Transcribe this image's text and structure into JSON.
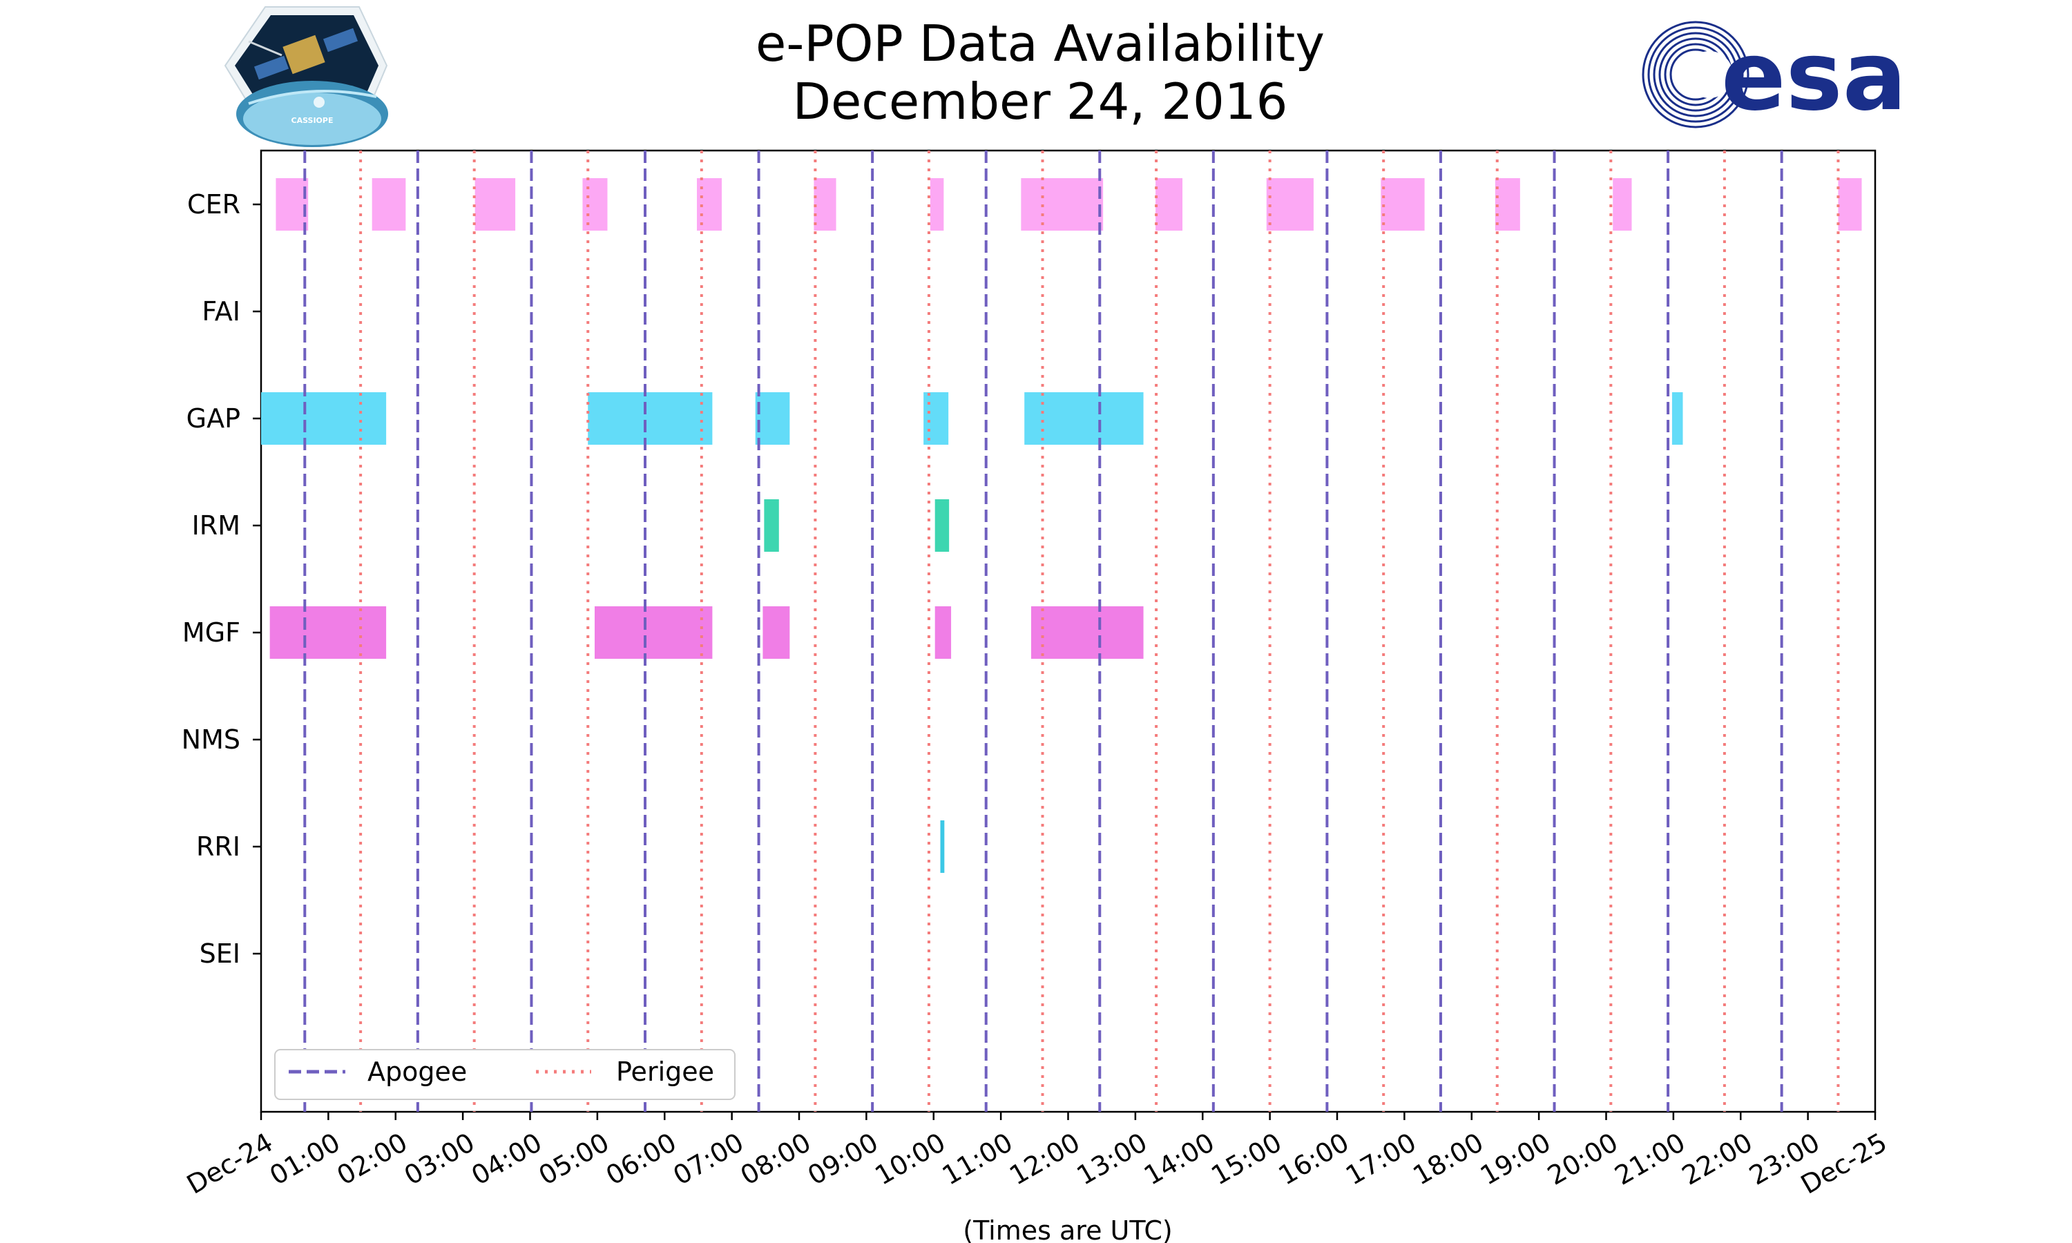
{
  "chart_data": {
    "type": "timeline",
    "title_line1": "e-POP Data Availability",
    "title_line2": "December 24, 2016",
    "xlabel": "(Times are UTC)",
    "x_unit": "hours since Dec-24 00:00",
    "xlim": [
      0,
      24
    ],
    "x_tick_labels": [
      "Dec-24",
      "01:00",
      "02:00",
      "03:00",
      "04:00",
      "05:00",
      "06:00",
      "07:00",
      "08:00",
      "09:00",
      "10:00",
      "11:00",
      "12:00",
      "13:00",
      "14:00",
      "15:00",
      "16:00",
      "17:00",
      "18:00",
      "19:00",
      "20:00",
      "21:00",
      "22:00",
      "23:00",
      "Dec-25"
    ],
    "instruments": [
      "CER",
      "FAI",
      "GAP",
      "IRM",
      "MGF",
      "NMS",
      "RRI",
      "SEI"
    ],
    "apogee_hours": [
      0.65,
      2.33,
      4.02,
      5.71,
      7.4,
      9.09,
      10.78,
      12.47,
      14.16,
      15.85,
      17.54,
      19.23,
      20.92,
      22.61
    ],
    "perigee_hours": [
      1.48,
      3.17,
      4.86,
      6.55,
      8.24,
      9.93,
      11.62,
      13.31,
      15.0,
      16.69,
      18.38,
      20.07,
      21.76,
      23.45
    ],
    "segments": [
      {
        "instrument": "CER",
        "color": "#fca8f4",
        "intervals": [
          [
            0.22,
            0.7
          ],
          [
            1.65,
            2.15
          ],
          [
            3.18,
            3.78
          ],
          [
            4.78,
            5.15
          ],
          [
            6.48,
            6.85
          ],
          [
            8.22,
            8.55
          ],
          [
            9.95,
            10.15
          ],
          [
            11.3,
            12.52
          ],
          [
            13.3,
            13.7
          ],
          [
            14.95,
            15.65
          ],
          [
            16.65,
            17.3
          ],
          [
            18.35,
            18.72
          ],
          [
            20.1,
            20.38
          ],
          [
            23.45,
            23.8
          ]
        ]
      },
      {
        "instrument": "GAP",
        "color": "#63dcf8",
        "intervals": [
          [
            0.0,
            1.86
          ],
          [
            4.86,
            6.71
          ],
          [
            7.35,
            7.86
          ],
          [
            9.85,
            10.22
          ],
          [
            11.35,
            13.12
          ],
          [
            20.98,
            21.14
          ]
        ]
      },
      {
        "instrument": "IRM",
        "color": "#3dd6b0",
        "intervals": [
          [
            7.48,
            7.7
          ],
          [
            10.02,
            10.23
          ]
        ]
      },
      {
        "instrument": "MGF",
        "color": "#f07ee6",
        "intervals": [
          [
            0.13,
            1.86
          ],
          [
            4.96,
            6.71
          ],
          [
            7.46,
            7.86
          ],
          [
            10.02,
            10.26
          ],
          [
            11.45,
            13.12
          ]
        ]
      },
      {
        "instrument": "RRI",
        "color": "#3cc8e6",
        "intervals": [
          [
            10.1,
            10.16
          ]
        ]
      }
    ],
    "legend": {
      "location": "lower-left",
      "entries": [
        {
          "label": "Apogee",
          "style": "dashed",
          "color": "#6f5fbf"
        },
        {
          "label": "Perigee",
          "style": "dotted",
          "color": "#f47c7c"
        }
      ]
    },
    "apogee_color": "#6f5fbf",
    "perigee_color": "#f47c7c"
  },
  "logos": {
    "left": {
      "name": "CASSIOPE mission logo",
      "text": "CASSIOPE"
    },
    "right": {
      "name": "ESA logo",
      "text": "esa",
      "color": "#1a2f8a"
    }
  }
}
